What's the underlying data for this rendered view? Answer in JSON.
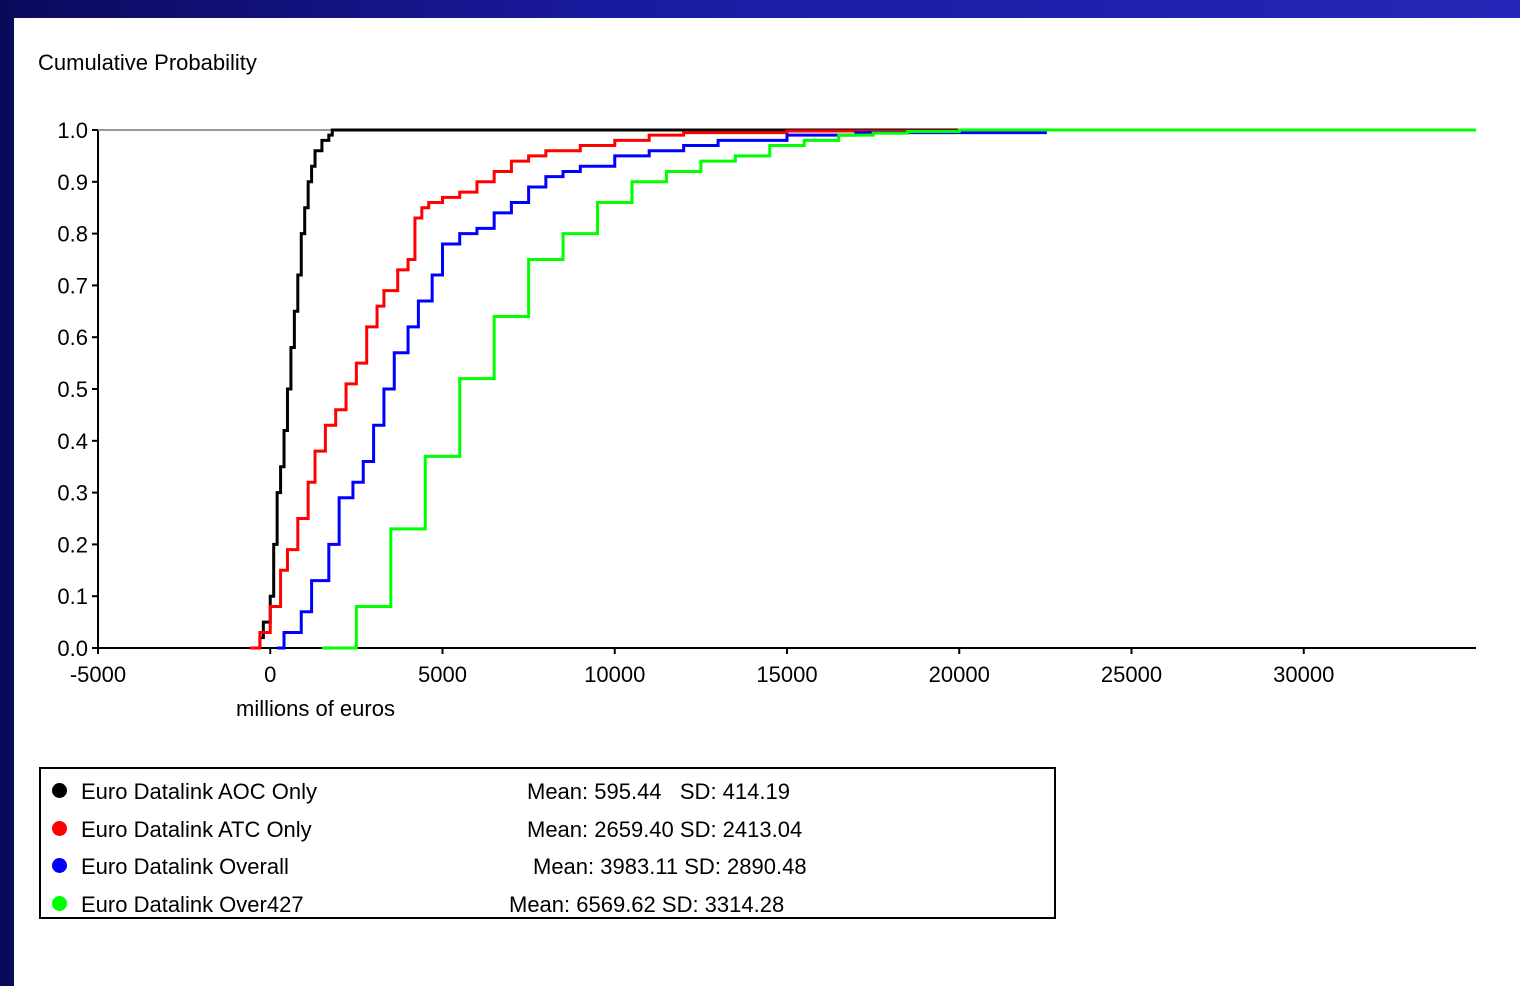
{
  "chart_data": {
    "type": "line",
    "ylabel": "Cumulative Probability",
    "xlabel": "millions of euros",
    "xlim": [
      -5000,
      35000
    ],
    "ylim": [
      0,
      1.0
    ],
    "x_ticks": [
      "-5000",
      "0",
      "5000",
      "10000",
      "15000",
      "20000",
      "25000",
      "30000"
    ],
    "y_ticks": [
      "0.0",
      "0.1",
      "0.2",
      "0.3",
      "0.4",
      "0.5",
      "0.6",
      "0.7",
      "0.8",
      "0.9",
      "1.0"
    ],
    "series": [
      {
        "name": "Euro Datalink AOC Only",
        "color": "#000000",
        "stats": "Mean: 595.44   SD: 414.19",
        "x": [
          -500,
          -300,
          -200,
          0,
          100,
          200,
          300,
          400,
          500,
          600,
          700,
          800,
          900,
          1000,
          1100,
          1200,
          1300,
          1500,
          1700,
          1800,
          35000
        ],
        "y": [
          0.0,
          0.02,
          0.05,
          0.1,
          0.2,
          0.3,
          0.35,
          0.42,
          0.5,
          0.58,
          0.65,
          0.72,
          0.8,
          0.85,
          0.9,
          0.93,
          0.96,
          0.98,
          0.99,
          1.0,
          1.0
        ]
      },
      {
        "name": "Euro Datalink ATC Only",
        "color": "#ff0000",
        "stats": "Mean: 2659.40 SD: 2413.04",
        "x": [
          -600,
          -300,
          0,
          300,
          500,
          800,
          1100,
          1300,
          1600,
          1900,
          2200,
          2500,
          2800,
          3100,
          3300,
          3700,
          4000,
          4200,
          4400,
          4600,
          5000,
          5500,
          6000,
          6500,
          7000,
          7500,
          8000,
          9000,
          10000,
          11000,
          12000,
          15000,
          20000,
          35000
        ],
        "y": [
          0.0,
          0.03,
          0.08,
          0.15,
          0.19,
          0.25,
          0.32,
          0.38,
          0.43,
          0.46,
          0.51,
          0.55,
          0.62,
          0.66,
          0.69,
          0.73,
          0.75,
          0.83,
          0.85,
          0.86,
          0.87,
          0.88,
          0.9,
          0.92,
          0.94,
          0.95,
          0.96,
          0.97,
          0.98,
          0.99,
          0.995,
          0.998,
          1.0,
          1.0
        ]
      },
      {
        "name": "Euro Datalink Overall",
        "color": "#0000ff",
        "stats": "Mean: 3983.11 SD: 2890.48",
        "x": [
          200,
          400,
          900,
          1200,
          1700,
          2000,
          2400,
          2700,
          3000,
          3300,
          3600,
          4000,
          4300,
          4700,
          5000,
          5500,
          6000,
          6500,
          7000,
          7500,
          8000,
          8500,
          9000,
          10000,
          11000,
          12000,
          13000,
          15000,
          17000,
          22500,
          35000
        ],
        "y": [
          0.0,
          0.03,
          0.07,
          0.13,
          0.2,
          0.29,
          0.32,
          0.36,
          0.43,
          0.5,
          0.57,
          0.62,
          0.67,
          0.72,
          0.78,
          0.8,
          0.81,
          0.84,
          0.86,
          0.89,
          0.91,
          0.92,
          0.93,
          0.95,
          0.96,
          0.97,
          0.98,
          0.99,
          0.995,
          1.0,
          1.0
        ]
      },
      {
        "name": "Euro Datalink Over427",
        "color": "#00ff00",
        "stats": "Mean: 6569.62 SD: 3314.28",
        "x": [
          1500,
          2500,
          3500,
          4500,
          5500,
          6500,
          7500,
          8500,
          9500,
          10500,
          11500,
          12500,
          13500,
          14500,
          15500,
          16500,
          17500,
          18500,
          20000,
          35000
        ],
        "y": [
          0.0,
          0.08,
          0.23,
          0.37,
          0.52,
          0.64,
          0.75,
          0.8,
          0.86,
          0.9,
          0.92,
          0.94,
          0.95,
          0.97,
          0.98,
          0.99,
          0.994,
          0.997,
          1.0,
          1.0
        ]
      }
    ]
  }
}
